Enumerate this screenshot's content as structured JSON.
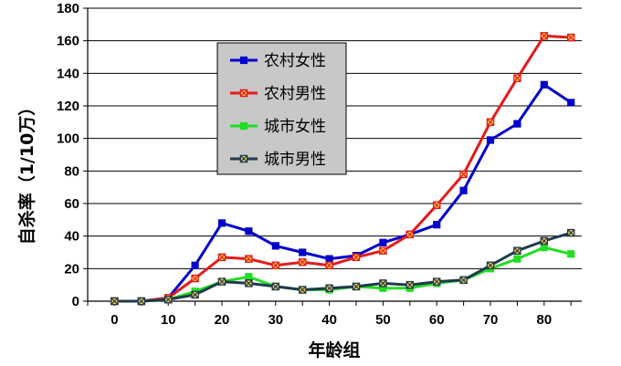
{
  "chart_data": {
    "type": "line",
    "xlabel": "年龄组",
    "ylabel": "自杀率（1/10万）",
    "xlim": [
      -5,
      87
    ],
    "ylim": [
      0,
      180
    ],
    "x_ticks": [
      0,
      10,
      20,
      30,
      40,
      50,
      60,
      70,
      80
    ],
    "y_ticks": [
      0,
      20,
      40,
      60,
      80,
      100,
      120,
      140,
      160,
      180
    ],
    "grid": "horizontal",
    "legend_position": "top-left inside plot",
    "x": [
      0,
      5,
      10,
      15,
      20,
      25,
      30,
      35,
      40,
      45,
      50,
      55,
      60,
      65,
      70,
      75,
      80,
      85
    ],
    "series": [
      {
        "name": "农村女性",
        "color": "#0000CC",
        "marker": "square",
        "values": [
          0,
          0,
          2,
          22,
          48,
          43,
          34,
          30,
          26,
          28,
          36,
          41,
          47,
          68,
          99,
          109,
          133,
          122
        ]
      },
      {
        "name": "农村男性",
        "color": "#E41A1C",
        "marker": "square-x",
        "values": [
          0,
          0,
          2,
          14,
          27,
          26,
          22,
          24,
          22,
          27,
          31,
          41,
          59,
          78,
          110,
          137,
          163,
          162
        ]
      },
      {
        "name": "城市女性",
        "color": "#22DD22",
        "marker": "square",
        "values": [
          0,
          0,
          1,
          6,
          12,
          15,
          9,
          7,
          7,
          9,
          8,
          8,
          11,
          13,
          20,
          26,
          33,
          29
        ]
      },
      {
        "name": "城市男性",
        "color": "#1F3A4D",
        "marker": "square-x",
        "values": [
          0,
          0,
          1,
          4,
          12,
          11,
          9,
          7,
          8,
          9,
          11,
          10,
          12,
          13,
          22,
          31,
          37,
          42
        ]
      }
    ]
  }
}
